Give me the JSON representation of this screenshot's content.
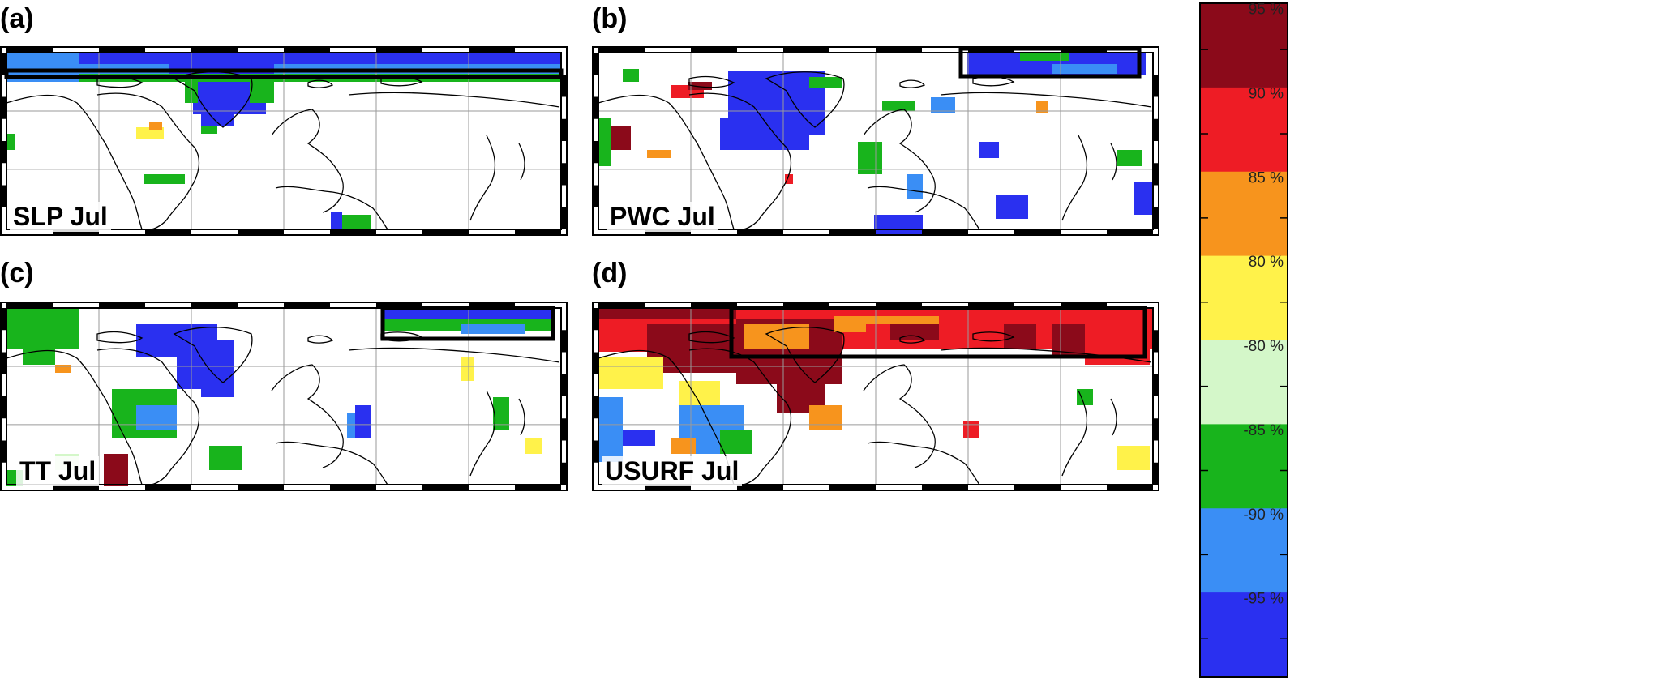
{
  "panels": [
    {
      "letter": "(a)",
      "name": "SLP Jul"
    },
    {
      "letter": "(b)",
      "name": "PWC Jul"
    },
    {
      "letter": "(c)",
      "name": "TT Jul"
    },
    {
      "letter": "(d)",
      "name": "USURF Jul"
    }
  ],
  "colorbar": {
    "levels": [
      {
        "label": "95 %",
        "color": "#8b0a1a"
      },
      {
        "label": "90 %",
        "color": "#ee1c25"
      },
      {
        "label": "85 %",
        "color": "#f7941d"
      },
      {
        "label": "80 %",
        "color": "#fff24a"
      },
      {
        "label": "-80 %",
        "color": "#d4f7c9"
      },
      {
        "label": "-85 %",
        "color": "#18b41c"
      },
      {
        "label": "-90 %",
        "color": "#3a8ef5"
      },
      {
        "label": "-95 %",
        "color": "#2a30f0"
      }
    ]
  }
}
